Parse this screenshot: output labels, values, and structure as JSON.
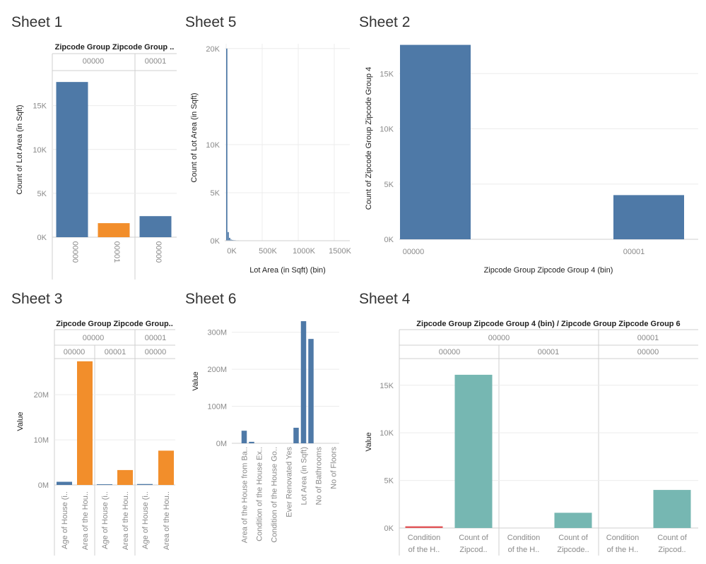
{
  "colors": {
    "blue": "#4e79a7",
    "orange": "#f28e2b",
    "teal": "#76b7b2",
    "red": "#e15759"
  },
  "sheets": {
    "s1": "Sheet 1",
    "s5": "Sheet 5",
    "s2": "Sheet 2",
    "s3": "Sheet 3",
    "s6": "Sheet 6",
    "s4": "Sheet 4"
  },
  "chart_data": [
    {
      "id": "sheet1",
      "type": "bar",
      "title": "Zipcode Group Zipcode Group ..",
      "ylabel": "Count of Lot Area (in Sqft)",
      "ylim": [
        0,
        19000
      ],
      "yticks": [
        {
          "v": 0,
          "label": "0K"
        },
        {
          "v": 5000,
          "label": "5K"
        },
        {
          "v": 10000,
          "label": "10K"
        },
        {
          "v": 15000,
          "label": "15K"
        }
      ],
      "headers": [
        "00000",
        "00001"
      ],
      "bars": [
        {
          "group": "00000",
          "label": "00000",
          "value": 17700,
          "color": "blue"
        },
        {
          "group": "00000",
          "label": "00001",
          "value": 1600,
          "color": "orange"
        },
        {
          "group": "00001",
          "label": "00000",
          "value": 2400,
          "color": "blue"
        }
      ]
    },
    {
      "id": "sheet5",
      "type": "bar",
      "xlabel": "Lot Area (in Sqft) (bin)",
      "ylabel": "Count of Lot Area (in Sqft)",
      "xlim": [
        0,
        1650000
      ],
      "ylim": [
        0,
        20500
      ],
      "xticks": [
        {
          "v": 0,
          "label": "0K"
        },
        {
          "v": 500000,
          "label": "500K"
        },
        {
          "v": 1000000,
          "label": "1000K"
        },
        {
          "v": 1500000,
          "label": "1500K"
        }
      ],
      "yticks": [
        {
          "v": 0,
          "label": "0K"
        },
        {
          "v": 5000,
          "label": "5K"
        },
        {
          "v": 10000,
          "label": "10K"
        },
        {
          "v": 20000,
          "label": "20K"
        }
      ],
      "bins": [
        {
          "start": 0,
          "end": 20000,
          "value": 20000
        },
        {
          "start": 20000,
          "end": 40000,
          "value": 900
        },
        {
          "start": 40000,
          "end": 60000,
          "value": 300
        },
        {
          "start": 60000,
          "end": 80000,
          "value": 120
        },
        {
          "start": 80000,
          "end": 100000,
          "value": 80
        },
        {
          "start": 100000,
          "end": 120000,
          "value": 60
        },
        {
          "start": 120000,
          "end": 140000,
          "value": 50
        },
        {
          "start": 140000,
          "end": 160000,
          "value": 40
        },
        {
          "start": 160000,
          "end": 180000,
          "value": 40
        },
        {
          "start": 180000,
          "end": 200000,
          "value": 30
        },
        {
          "start": 200000,
          "end": 220000,
          "value": 30
        }
      ]
    },
    {
      "id": "sheet2",
      "type": "bar",
      "xlabel": "Zipcode Group Zipcode Group 4 (bin)",
      "ylabel": "Count of Zipcode Group Zipcode Group 4",
      "ylim": [
        0,
        17700
      ],
      "yticks": [
        {
          "v": 0,
          "label": "0K"
        },
        {
          "v": 5000,
          "label": "5K"
        },
        {
          "v": 10000,
          "label": "10K"
        },
        {
          "v": 15000,
          "label": "15K"
        }
      ],
      "bars": [
        {
          "label": "00000",
          "value": 17600,
          "color": "blue"
        },
        {
          "label": "00001",
          "value": 4000,
          "color": "blue"
        }
      ]
    },
    {
      "id": "sheet3",
      "type": "bar",
      "title": "Zipcode Group Zipcode Group..",
      "ylabel": "Value",
      "ylim": [
        0,
        28000000
      ],
      "yticks": [
        {
          "v": 0,
          "label": "0M"
        },
        {
          "v": 10000000,
          "label": "10M"
        },
        {
          "v": 20000000,
          "label": "20M"
        }
      ],
      "headers_top": [
        "00000",
        "00001"
      ],
      "headers_sub": [
        "00000",
        "00001",
        "00000"
      ],
      "bars": [
        {
          "sub": 0,
          "label": "Age of House (i..",
          "value": 700000,
          "color": "blue"
        },
        {
          "sub": 0,
          "label": "Area of the Hou..",
          "value": 27400000,
          "color": "orange"
        },
        {
          "sub": 1,
          "label": "Age of House (i..",
          "value": 150000,
          "color": "blue"
        },
        {
          "sub": 1,
          "label": "Area of the Hou..",
          "value": 3300000,
          "color": "orange"
        },
        {
          "sub": 2,
          "label": "Age of House (i..",
          "value": 200000,
          "color": "blue"
        },
        {
          "sub": 2,
          "label": "Area of the Hou..",
          "value": 7600000,
          "color": "orange"
        }
      ]
    },
    {
      "id": "sheet6",
      "type": "bar",
      "ylabel": "Value",
      "ylim": [
        0,
        330000000
      ],
      "yticks": [
        {
          "v": 0,
          "label": "0M"
        },
        {
          "v": 100000000,
          "label": "100M"
        },
        {
          "v": 200000000,
          "label": "200M"
        },
        {
          "v": 300000000,
          "label": "300M"
        }
      ],
      "bars": [
        {
          "label": "",
          "value": 0
        },
        {
          "label": "Area of the House from Ba..",
          "value": 34000000
        },
        {
          "label": "",
          "value": 4000000
        },
        {
          "label": "Condition of the House Ex..",
          "value": 0
        },
        {
          "label": "",
          "value": 0
        },
        {
          "label": "Condition of the House Go..",
          "value": 0
        },
        {
          "label": "",
          "value": 0
        },
        {
          "label": "Ever Renovated Yes",
          "value": 0
        },
        {
          "label": "",
          "value": 42000000
        },
        {
          "label": "Lot Area (in Sqft)",
          "value": 330000000
        },
        {
          "label": "",
          "value": 282000000
        },
        {
          "label": "No of Bathrooms",
          "value": 0
        },
        {
          "label": "",
          "value": 0
        },
        {
          "label": "No of Floors",
          "value": 0
        }
      ]
    },
    {
      "id": "sheet4",
      "type": "bar",
      "title": "Zipcode Group Zipcode Group 4 (bin)  /  Zipcode Group Zipcode Group 6",
      "ylabel": "Value",
      "ylim": [
        0,
        17800
      ],
      "yticks": [
        {
          "v": 0,
          "label": "0K"
        },
        {
          "v": 5000,
          "label": "5K"
        },
        {
          "v": 10000,
          "label": "10K"
        },
        {
          "v": 15000,
          "label": "15K"
        }
      ],
      "headers_top": [
        "00000",
        "00001"
      ],
      "headers_sub": [
        "00000",
        "00001",
        "00000"
      ],
      "bars": [
        {
          "sub": 0,
          "label1": "Condition",
          "label2": "of the H..",
          "value": 180,
          "color": "red"
        },
        {
          "sub": 0,
          "label1": "Count of",
          "label2": "Zipcod..",
          "value": 16100,
          "color": "teal"
        },
        {
          "sub": 1,
          "label1": "Condition",
          "label2": "of the H..",
          "value": 0,
          "color": "red"
        },
        {
          "sub": 1,
          "label1": "Count of",
          "label2": "Zipcode..",
          "value": 1600,
          "color": "teal"
        },
        {
          "sub": 2,
          "label1": "Condition",
          "label2": "of the H..",
          "value": 0,
          "color": "red"
        },
        {
          "sub": 2,
          "label1": "Count of",
          "label2": "Zipcod..",
          "value": 4000,
          "color": "teal"
        }
      ]
    }
  ]
}
